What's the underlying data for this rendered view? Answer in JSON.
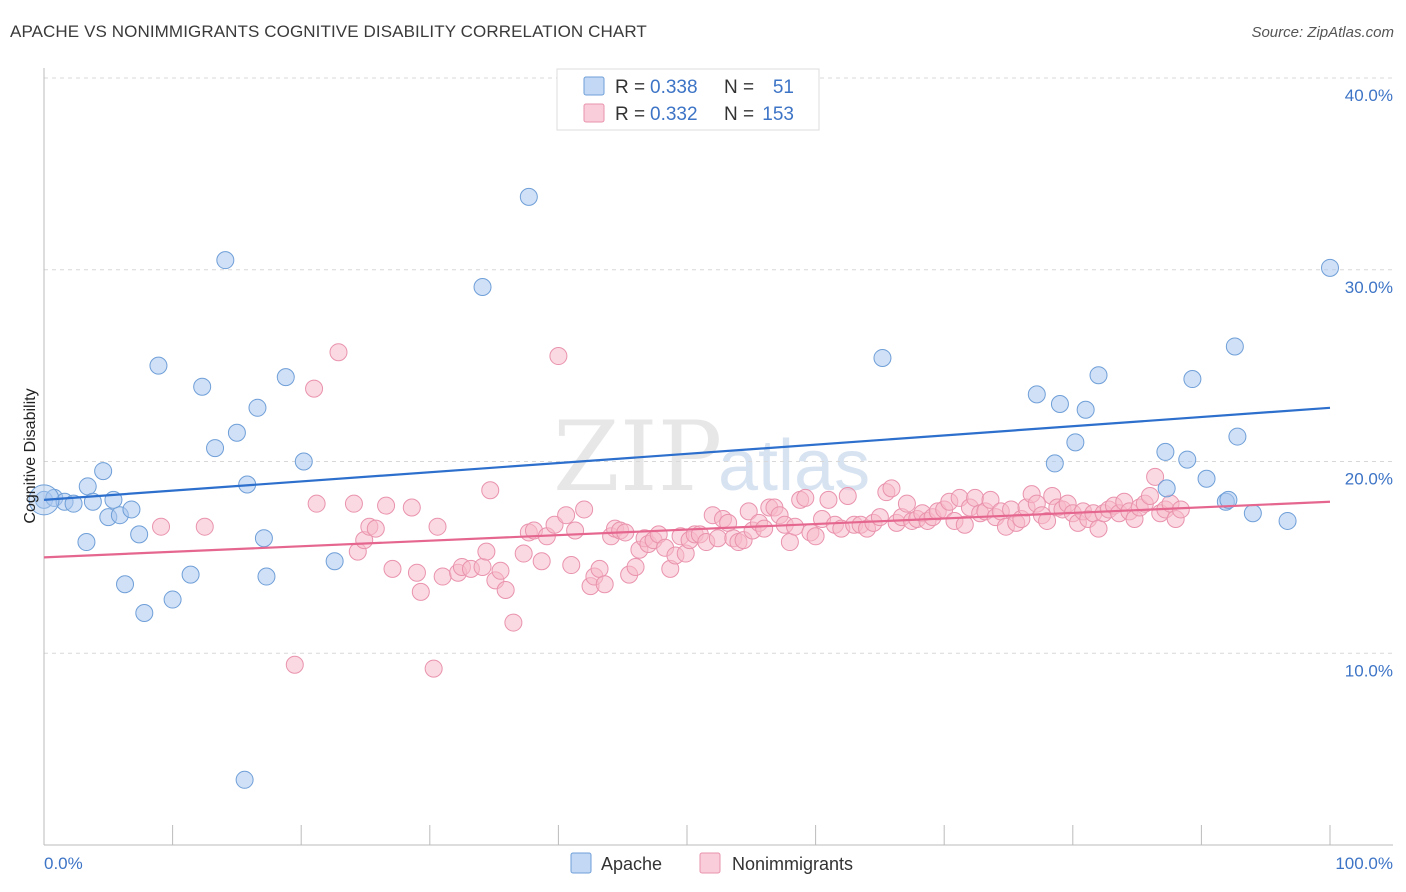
{
  "header": {
    "title": "APACHE VS NONIMMIGRANTS COGNITIVE DISABILITY CORRELATION CHART",
    "source": "Source: ZipAtlas.com"
  },
  "colors": {
    "apache_fill": "#a9c7ef",
    "apache_stroke": "#6f9fd8",
    "apache_line": "#2d6fcc",
    "nonimm_fill": "#f7b9cb",
    "nonimm_stroke": "#e993ad",
    "nonimm_line": "#e5678f",
    "accent_text": "#3d74c6",
    "grid": "#d8d8d8"
  },
  "legend": {
    "rows": [
      {
        "r_label": "R =",
        "r_value": "0.338",
        "n_label": "N =",
        "n_value": "51"
      },
      {
        "r_label": "R =",
        "r_value": "0.332",
        "n_label": "N =",
        "n_value": "153"
      }
    ]
  },
  "watermark": {
    "zip": "ZIP",
    "atlas": "atlas"
  },
  "chart_data": {
    "type": "scatter",
    "title": "APACHE VS NONIMMIGRANTS COGNITIVE DISABILITY CORRELATION CHART",
    "xlabel": "",
    "ylabel": "Cognitive Disability",
    "xlim": [
      0,
      100
    ],
    "ylim": [
      0,
      40
    ],
    "x_tick_labels": [
      "0.0%",
      "100.0%"
    ],
    "y_ticks": [
      10,
      20,
      30,
      40
    ],
    "y_tick_labels": [
      "10.0%",
      "20.0%",
      "30.0%",
      "40.0%"
    ],
    "grid": true,
    "legend_position": "bottom-center",
    "series": [
      {
        "name": "Apache",
        "r": 0.338,
        "n": 51,
        "trend": {
          "x": [
            0,
            100
          ],
          "y": [
            18.0,
            22.8
          ]
        },
        "points": [
          [
            0.0,
            18.0
          ],
          [
            0.8,
            18.1
          ],
          [
            1.6,
            17.9
          ],
          [
            2.3,
            17.8
          ],
          [
            3.4,
            18.7
          ],
          [
            3.3,
            15.8
          ],
          [
            3.8,
            17.9
          ],
          [
            4.6,
            19.5
          ],
          [
            5.0,
            17.1
          ],
          [
            5.4,
            18.0
          ],
          [
            5.9,
            17.2
          ],
          [
            6.3,
            13.6
          ],
          [
            6.8,
            17.5
          ],
          [
            7.4,
            16.2
          ],
          [
            7.8,
            12.1
          ],
          [
            8.9,
            25.0
          ],
          [
            10.0,
            12.8
          ],
          [
            11.4,
            14.1
          ],
          [
            12.3,
            23.9
          ],
          [
            13.3,
            20.7
          ],
          [
            14.1,
            30.5
          ],
          [
            15.0,
            21.5
          ],
          [
            15.6,
            3.4
          ],
          [
            15.8,
            18.8
          ],
          [
            16.6,
            22.8
          ],
          [
            17.1,
            16.0
          ],
          [
            17.3,
            14.0
          ],
          [
            18.8,
            24.4
          ],
          [
            20.2,
            20.0
          ],
          [
            22.6,
            14.8
          ],
          [
            34.1,
            29.1
          ],
          [
            37.7,
            33.8
          ],
          [
            65.2,
            25.4
          ],
          [
            77.2,
            23.5
          ],
          [
            78.6,
            19.9
          ],
          [
            79.0,
            23.0
          ],
          [
            80.2,
            21.0
          ],
          [
            81.0,
            22.7
          ],
          [
            82.0,
            24.5
          ],
          [
            87.2,
            20.5
          ],
          [
            87.3,
            18.6
          ],
          [
            88.9,
            20.1
          ],
          [
            89.3,
            24.3
          ],
          [
            90.4,
            19.1
          ],
          [
            91.9,
            17.9
          ],
          [
            92.1,
            18.0
          ],
          [
            92.6,
            26.0
          ],
          [
            92.8,
            21.3
          ],
          [
            94.0,
            17.3
          ],
          [
            96.7,
            16.9
          ],
          [
            100.0,
            30.1
          ]
        ]
      },
      {
        "name": "Nonimmigrants",
        "r": 0.332,
        "n": 153,
        "trend": {
          "x": [
            0,
            100
          ],
          "y": [
            15.0,
            17.9
          ]
        },
        "points": [
          [
            9.1,
            16.6
          ],
          [
            12.5,
            16.6
          ],
          [
            19.5,
            9.4
          ],
          [
            21.0,
            23.8
          ],
          [
            21.2,
            17.8
          ],
          [
            22.9,
            25.7
          ],
          [
            24.1,
            17.8
          ],
          [
            24.4,
            15.3
          ],
          [
            24.9,
            15.9
          ],
          [
            25.3,
            16.6
          ],
          [
            25.8,
            16.5
          ],
          [
            26.6,
            17.7
          ],
          [
            27.1,
            14.4
          ],
          [
            28.6,
            17.6
          ],
          [
            29.0,
            14.2
          ],
          [
            29.3,
            13.2
          ],
          [
            30.3,
            9.2
          ],
          [
            30.6,
            16.6
          ],
          [
            31.0,
            14.0
          ],
          [
            32.2,
            14.2
          ],
          [
            32.5,
            14.5
          ],
          [
            33.2,
            14.4
          ],
          [
            34.1,
            14.5
          ],
          [
            34.4,
            15.3
          ],
          [
            34.7,
            18.5
          ],
          [
            35.1,
            13.8
          ],
          [
            35.5,
            14.3
          ],
          [
            35.9,
            13.3
          ],
          [
            36.5,
            11.6
          ],
          [
            37.3,
            15.2
          ],
          [
            37.7,
            16.3
          ],
          [
            38.1,
            16.4
          ],
          [
            38.7,
            14.8
          ],
          [
            39.1,
            16.1
          ],
          [
            39.7,
            16.7
          ],
          [
            40.0,
            25.5
          ],
          [
            40.6,
            17.2
          ],
          [
            41.0,
            14.6
          ],
          [
            41.3,
            16.4
          ],
          [
            42.0,
            17.5
          ],
          [
            42.5,
            13.5
          ],
          [
            42.8,
            14.0
          ],
          [
            43.2,
            14.4
          ],
          [
            43.6,
            13.6
          ],
          [
            44.1,
            16.1
          ],
          [
            44.4,
            16.5
          ],
          [
            44.8,
            16.4
          ],
          [
            45.2,
            16.3
          ],
          [
            45.5,
            14.1
          ],
          [
            46.0,
            14.5
          ],
          [
            46.3,
            15.4
          ],
          [
            46.7,
            16.0
          ],
          [
            47.0,
            15.7
          ],
          [
            47.4,
            15.9
          ],
          [
            47.8,
            16.2
          ],
          [
            48.3,
            15.5
          ],
          [
            48.7,
            14.4
          ],
          [
            49.1,
            15.1
          ],
          [
            49.5,
            16.1
          ],
          [
            49.9,
            15.2
          ],
          [
            50.2,
            15.9
          ],
          [
            50.6,
            16.2
          ],
          [
            51.0,
            16.2
          ],
          [
            51.5,
            15.8
          ],
          [
            52.0,
            17.2
          ],
          [
            52.4,
            16.0
          ],
          [
            52.8,
            17.0
          ],
          [
            53.2,
            16.8
          ],
          [
            53.6,
            16.0
          ],
          [
            54.0,
            15.8
          ],
          [
            54.4,
            15.9
          ],
          [
            54.8,
            17.4
          ],
          [
            55.1,
            16.4
          ],
          [
            55.6,
            16.8
          ],
          [
            56.0,
            16.5
          ],
          [
            56.4,
            17.6
          ],
          [
            56.8,
            17.6
          ],
          [
            57.2,
            17.2
          ],
          [
            57.6,
            16.7
          ],
          [
            58.0,
            15.8
          ],
          [
            58.4,
            16.6
          ],
          [
            58.8,
            18.0
          ],
          [
            59.2,
            18.1
          ],
          [
            59.6,
            16.3
          ],
          [
            60.0,
            16.1
          ],
          [
            60.5,
            17.0
          ],
          [
            61.0,
            18.0
          ],
          [
            61.5,
            16.7
          ],
          [
            62.0,
            16.5
          ],
          [
            62.5,
            18.2
          ],
          [
            63.0,
            16.7
          ],
          [
            63.5,
            16.7
          ],
          [
            64.0,
            16.5
          ],
          [
            64.5,
            16.8
          ],
          [
            65.0,
            17.1
          ],
          [
            65.5,
            18.4
          ],
          [
            65.9,
            18.6
          ],
          [
            66.3,
            16.8
          ],
          [
            66.7,
            17.1
          ],
          [
            67.1,
            17.8
          ],
          [
            67.5,
            16.9
          ],
          [
            67.9,
            17.0
          ],
          [
            68.3,
            17.3
          ],
          [
            68.7,
            16.9
          ],
          [
            69.1,
            17.1
          ],
          [
            69.5,
            17.4
          ],
          [
            70.0,
            17.5
          ],
          [
            70.4,
            17.9
          ],
          [
            70.8,
            16.9
          ],
          [
            71.2,
            18.1
          ],
          [
            71.6,
            16.7
          ],
          [
            72.0,
            17.6
          ],
          [
            72.4,
            18.1
          ],
          [
            72.8,
            17.3
          ],
          [
            73.2,
            17.4
          ],
          [
            73.6,
            18.0
          ],
          [
            74.0,
            17.1
          ],
          [
            74.4,
            17.4
          ],
          [
            74.8,
            16.6
          ],
          [
            75.2,
            17.5
          ],
          [
            75.6,
            16.8
          ],
          [
            76.0,
            17.0
          ],
          [
            76.4,
            17.6
          ],
          [
            76.8,
            18.3
          ],
          [
            77.2,
            17.8
          ],
          [
            77.6,
            17.2
          ],
          [
            78.0,
            16.9
          ],
          [
            78.4,
            18.2
          ],
          [
            78.8,
            17.6
          ],
          [
            79.2,
            17.5
          ],
          [
            79.6,
            17.8
          ],
          [
            80.0,
            17.3
          ],
          [
            80.4,
            16.8
          ],
          [
            80.8,
            17.4
          ],
          [
            81.2,
            17.0
          ],
          [
            81.6,
            17.3
          ],
          [
            82.0,
            16.5
          ],
          [
            82.4,
            17.3
          ],
          [
            82.8,
            17.5
          ],
          [
            83.2,
            17.7
          ],
          [
            83.6,
            17.3
          ],
          [
            84.0,
            17.9
          ],
          [
            84.4,
            17.4
          ],
          [
            84.8,
            17.0
          ],
          [
            85.2,
            17.6
          ],
          [
            85.6,
            17.8
          ],
          [
            86.0,
            18.2
          ],
          [
            86.4,
            19.2
          ],
          [
            86.8,
            17.3
          ],
          [
            87.2,
            17.5
          ],
          [
            87.6,
            17.8
          ],
          [
            88.0,
            17.0
          ],
          [
            88.4,
            17.5
          ]
        ]
      }
    ]
  },
  "bottom_legend": {
    "items": [
      {
        "label": "Apache"
      },
      {
        "label": "Nonimmigrants"
      }
    ]
  }
}
